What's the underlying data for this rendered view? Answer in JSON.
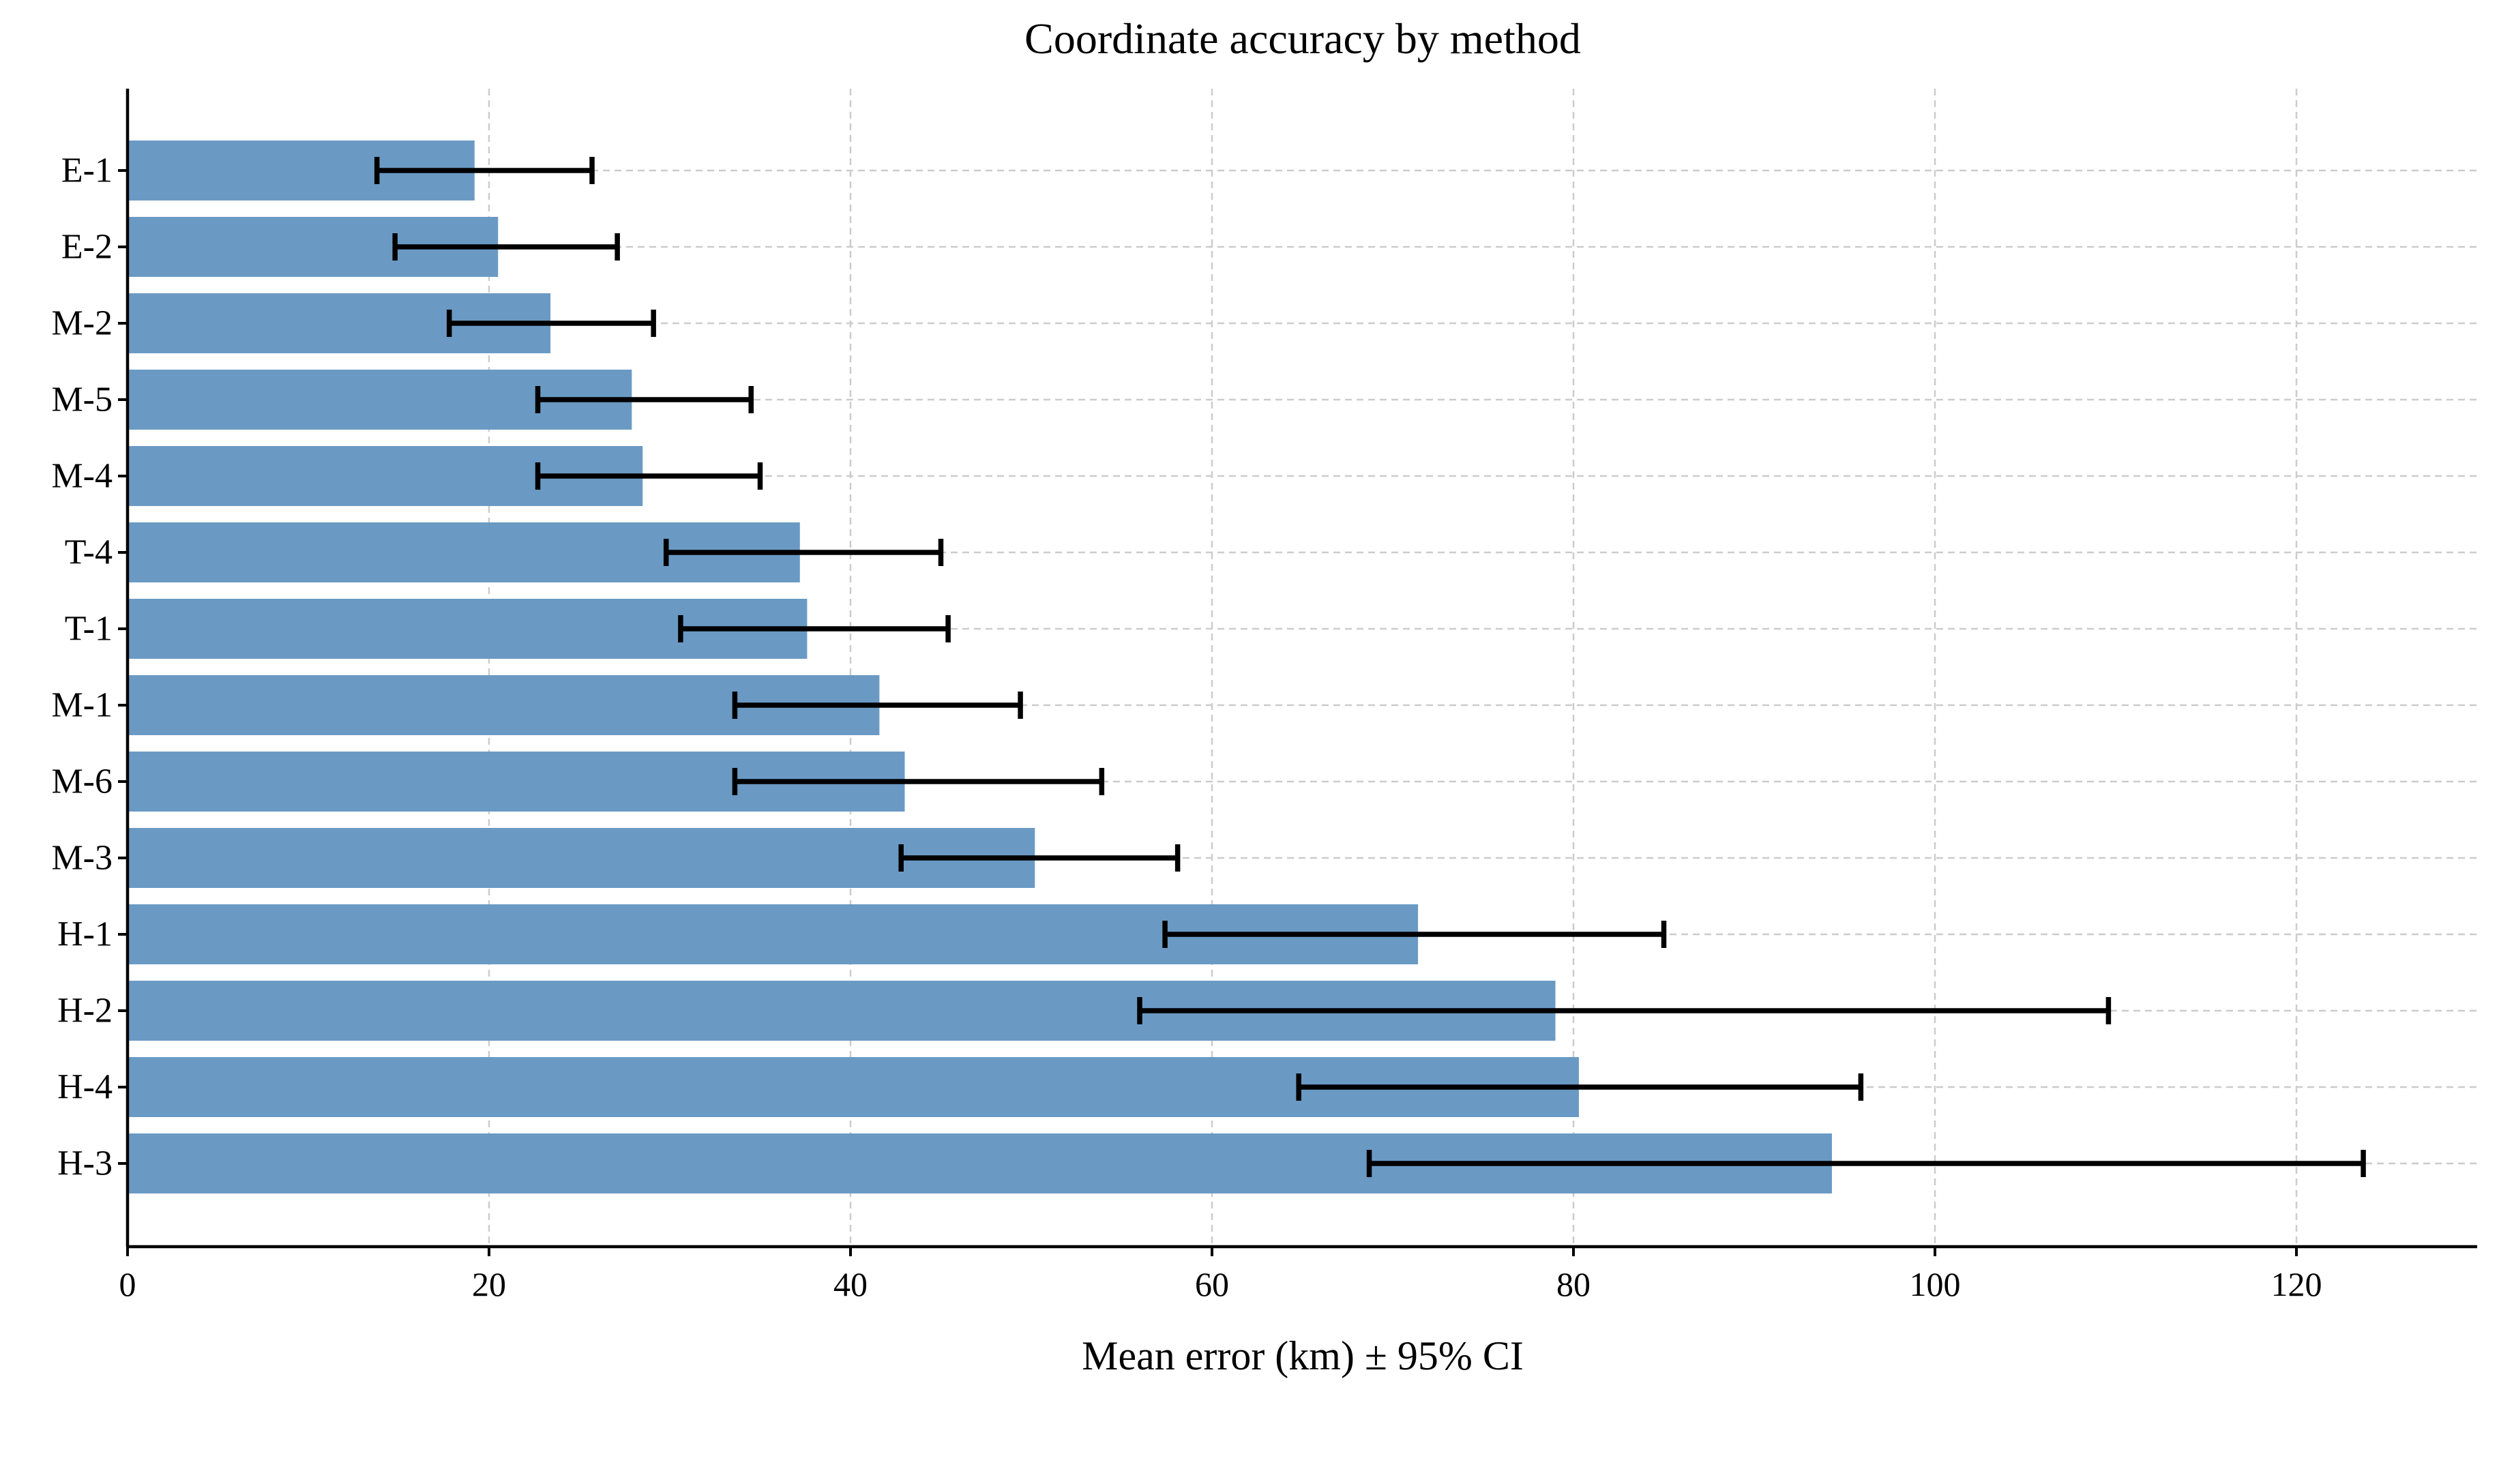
{
  "chart_data": {
    "type": "bar",
    "orientation": "horizontal",
    "title": "Coordinate accuracy by method",
    "xlabel": "Mean error (km) ± 95% CI",
    "ylabel": "",
    "xlim": [
      0,
      130
    ],
    "xticks": [
      0,
      20,
      40,
      60,
      80,
      100,
      120
    ],
    "grid": true,
    "bar_color": "#6a9ac4",
    "errorbar_color": "#000000",
    "categories": [
      "E-1",
      "E-2",
      "M-2",
      "M-5",
      "M-4",
      "T-4",
      "T-1",
      "M-1",
      "M-6",
      "M-3",
      "H-1",
      "H-2",
      "H-4",
      "H-3"
    ],
    "values": [
      19.2,
      20.5,
      23.4,
      27.9,
      28.5,
      37.2,
      37.6,
      41.6,
      43.0,
      50.2,
      71.4,
      79.0,
      80.3,
      94.3
    ],
    "ci_lower": [
      13.8,
      14.8,
      17.8,
      22.7,
      22.7,
      29.8,
      30.6,
      33.6,
      33.6,
      42.8,
      57.4,
      56.0,
      64.8,
      68.7
    ],
    "ci_upper": [
      25.7,
      27.1,
      29.1,
      34.5,
      35.0,
      45.0,
      45.4,
      49.4,
      53.9,
      58.1,
      85.0,
      109.6,
      95.9,
      123.7
    ]
  }
}
